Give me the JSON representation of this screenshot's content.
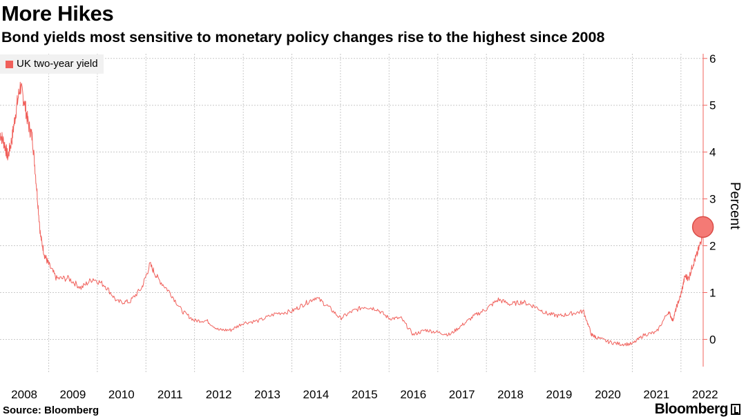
{
  "header": {
    "title": "More Hikes",
    "subtitle": "Bond yields most sensitive to monetary policy changes rise to the highest since 2008"
  },
  "footer": {
    "source": "Source: Bloomberg",
    "brand": "Bloomberg"
  },
  "colors": {
    "series": "#f0605b",
    "highlight_fill": "#f47a75",
    "highlight_stroke": "#d94c47",
    "grid": "#c8c8c8",
    "axis": "#f0605b"
  },
  "chart_data": {
    "type": "line",
    "title": "More Hikes",
    "subtitle": "Bond yields most sensitive to monetary policy changes rise to the highest since 2008",
    "xlabel": "",
    "ylabel": "Percent",
    "xlim": [
      "2008-01-01",
      "2022-06-17"
    ],
    "ylim": [
      -0.7,
      6.1
    ],
    "y_ticks": [
      0,
      1,
      2,
      3,
      4,
      5,
      6
    ],
    "x_tick_labels": [
      "2008",
      "2009",
      "2010",
      "2011",
      "2012",
      "2013",
      "2014",
      "2015",
      "2016",
      "2017",
      "2018",
      "2019",
      "2020",
      "2021",
      "2022"
    ],
    "grid": true,
    "y_axis_side": "right",
    "legend": {
      "position": "top-left",
      "entries": [
        "UK two-year yield"
      ]
    },
    "series": [
      {
        "name": "UK two-year yield",
        "x": [
          "2008-01-01",
          "2008-02-01",
          "2008-03-01",
          "2008-04-01",
          "2008-05-01",
          "2008-06-01",
          "2008-07-01",
          "2008-08-01",
          "2008-09-01",
          "2008-10-01",
          "2008-11-01",
          "2008-12-01",
          "2009-01-01",
          "2009-03-01",
          "2009-06-01",
          "2009-09-01",
          "2009-12-01",
          "2010-03-01",
          "2010-06-01",
          "2010-09-01",
          "2010-12-01",
          "2011-02-01",
          "2011-04-01",
          "2011-07-01",
          "2011-10-01",
          "2012-01-01",
          "2012-04-01",
          "2012-07-01",
          "2012-10-01",
          "2013-01-01",
          "2013-05-01",
          "2013-09-01",
          "2014-01-01",
          "2014-04-01",
          "2014-07-01",
          "2014-10-01",
          "2015-01-01",
          "2015-04-01",
          "2015-07-01",
          "2015-10-01",
          "2016-01-01",
          "2016-04-01",
          "2016-07-01",
          "2016-10-01",
          "2017-01-01",
          "2017-04-01",
          "2017-07-01",
          "2017-10-01",
          "2018-01-01",
          "2018-04-01",
          "2018-07-01",
          "2018-10-01",
          "2019-01-01",
          "2019-04-01",
          "2019-07-01",
          "2019-10-01",
          "2020-01-01",
          "2020-03-01",
          "2020-04-01",
          "2020-07-01",
          "2020-10-01",
          "2021-01-01",
          "2021-04-01",
          "2021-07-01",
          "2021-10-01",
          "2021-11-01",
          "2021-12-01",
          "2022-01-01",
          "2022-02-01",
          "2022-03-01",
          "2022-04-01",
          "2022-05-01",
          "2022-06-01",
          "2022-06-15"
        ],
        "values": [
          4.4,
          4.2,
          3.9,
          4.3,
          4.9,
          5.4,
          5.1,
          4.6,
          4.3,
          3.3,
          2.2,
          1.8,
          1.6,
          1.3,
          1.3,
          1.1,
          1.3,
          1.15,
          0.8,
          0.8,
          1.1,
          1.6,
          1.3,
          1.0,
          0.6,
          0.4,
          0.4,
          0.2,
          0.2,
          0.35,
          0.4,
          0.55,
          0.6,
          0.75,
          0.9,
          0.7,
          0.45,
          0.6,
          0.7,
          0.65,
          0.45,
          0.45,
          0.1,
          0.2,
          0.15,
          0.1,
          0.3,
          0.5,
          0.65,
          0.85,
          0.75,
          0.8,
          0.7,
          0.55,
          0.5,
          0.55,
          0.6,
          0.1,
          0.05,
          -0.05,
          -0.1,
          -0.1,
          0.1,
          0.15,
          0.6,
          0.4,
          0.7,
          0.95,
          1.35,
          1.3,
          1.6,
          1.8,
          2.1,
          2.4
        ]
      }
    ],
    "annotations": [
      {
        "type": "highlight-circle",
        "x": "2022-06-15",
        "y": 2.4
      }
    ]
  }
}
